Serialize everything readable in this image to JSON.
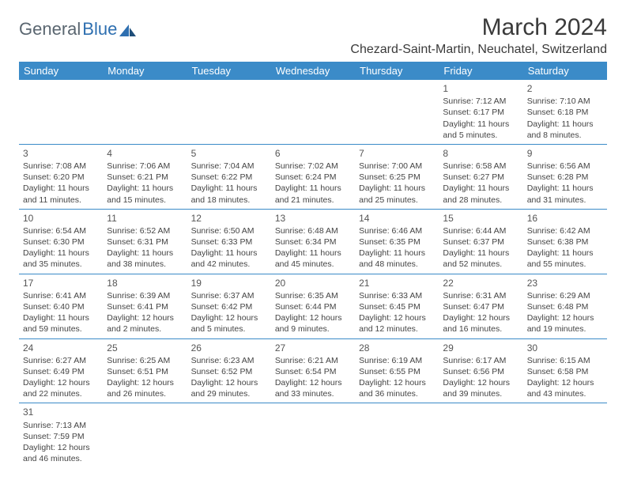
{
  "logo": {
    "general": "General",
    "blue": "Blue"
  },
  "title": "March 2024",
  "location": "Chezard-Saint-Martin, Neuchatel, Switzerland",
  "colors": {
    "header_bg": "#3b8bc8",
    "header_text": "#ffffff",
    "cell_border": "#3b8bc8",
    "text": "#444444",
    "logo_general": "#5a6670",
    "logo_blue": "#2e6fb0"
  },
  "daynames": [
    "Sunday",
    "Monday",
    "Tuesday",
    "Wednesday",
    "Thursday",
    "Friday",
    "Saturday"
  ],
  "weeks": [
    [
      null,
      null,
      null,
      null,
      null,
      {
        "n": "1",
        "sr": "Sunrise: 7:12 AM",
        "ss": "Sunset: 6:17 PM",
        "dl": "Daylight: 11 hours and 5 minutes."
      },
      {
        "n": "2",
        "sr": "Sunrise: 7:10 AM",
        "ss": "Sunset: 6:18 PM",
        "dl": "Daylight: 11 hours and 8 minutes."
      }
    ],
    [
      {
        "n": "3",
        "sr": "Sunrise: 7:08 AM",
        "ss": "Sunset: 6:20 PM",
        "dl": "Daylight: 11 hours and 11 minutes."
      },
      {
        "n": "4",
        "sr": "Sunrise: 7:06 AM",
        "ss": "Sunset: 6:21 PM",
        "dl": "Daylight: 11 hours and 15 minutes."
      },
      {
        "n": "5",
        "sr": "Sunrise: 7:04 AM",
        "ss": "Sunset: 6:22 PM",
        "dl": "Daylight: 11 hours and 18 minutes."
      },
      {
        "n": "6",
        "sr": "Sunrise: 7:02 AM",
        "ss": "Sunset: 6:24 PM",
        "dl": "Daylight: 11 hours and 21 minutes."
      },
      {
        "n": "7",
        "sr": "Sunrise: 7:00 AM",
        "ss": "Sunset: 6:25 PM",
        "dl": "Daylight: 11 hours and 25 minutes."
      },
      {
        "n": "8",
        "sr": "Sunrise: 6:58 AM",
        "ss": "Sunset: 6:27 PM",
        "dl": "Daylight: 11 hours and 28 minutes."
      },
      {
        "n": "9",
        "sr": "Sunrise: 6:56 AM",
        "ss": "Sunset: 6:28 PM",
        "dl": "Daylight: 11 hours and 31 minutes."
      }
    ],
    [
      {
        "n": "10",
        "sr": "Sunrise: 6:54 AM",
        "ss": "Sunset: 6:30 PM",
        "dl": "Daylight: 11 hours and 35 minutes."
      },
      {
        "n": "11",
        "sr": "Sunrise: 6:52 AM",
        "ss": "Sunset: 6:31 PM",
        "dl": "Daylight: 11 hours and 38 minutes."
      },
      {
        "n": "12",
        "sr": "Sunrise: 6:50 AM",
        "ss": "Sunset: 6:33 PM",
        "dl": "Daylight: 11 hours and 42 minutes."
      },
      {
        "n": "13",
        "sr": "Sunrise: 6:48 AM",
        "ss": "Sunset: 6:34 PM",
        "dl": "Daylight: 11 hours and 45 minutes."
      },
      {
        "n": "14",
        "sr": "Sunrise: 6:46 AM",
        "ss": "Sunset: 6:35 PM",
        "dl": "Daylight: 11 hours and 48 minutes."
      },
      {
        "n": "15",
        "sr": "Sunrise: 6:44 AM",
        "ss": "Sunset: 6:37 PM",
        "dl": "Daylight: 11 hours and 52 minutes."
      },
      {
        "n": "16",
        "sr": "Sunrise: 6:42 AM",
        "ss": "Sunset: 6:38 PM",
        "dl": "Daylight: 11 hours and 55 minutes."
      }
    ],
    [
      {
        "n": "17",
        "sr": "Sunrise: 6:41 AM",
        "ss": "Sunset: 6:40 PM",
        "dl": "Daylight: 11 hours and 59 minutes."
      },
      {
        "n": "18",
        "sr": "Sunrise: 6:39 AM",
        "ss": "Sunset: 6:41 PM",
        "dl": "Daylight: 12 hours and 2 minutes."
      },
      {
        "n": "19",
        "sr": "Sunrise: 6:37 AM",
        "ss": "Sunset: 6:42 PM",
        "dl": "Daylight: 12 hours and 5 minutes."
      },
      {
        "n": "20",
        "sr": "Sunrise: 6:35 AM",
        "ss": "Sunset: 6:44 PM",
        "dl": "Daylight: 12 hours and 9 minutes."
      },
      {
        "n": "21",
        "sr": "Sunrise: 6:33 AM",
        "ss": "Sunset: 6:45 PM",
        "dl": "Daylight: 12 hours and 12 minutes."
      },
      {
        "n": "22",
        "sr": "Sunrise: 6:31 AM",
        "ss": "Sunset: 6:47 PM",
        "dl": "Daylight: 12 hours and 16 minutes."
      },
      {
        "n": "23",
        "sr": "Sunrise: 6:29 AM",
        "ss": "Sunset: 6:48 PM",
        "dl": "Daylight: 12 hours and 19 minutes."
      }
    ],
    [
      {
        "n": "24",
        "sr": "Sunrise: 6:27 AM",
        "ss": "Sunset: 6:49 PM",
        "dl": "Daylight: 12 hours and 22 minutes."
      },
      {
        "n": "25",
        "sr": "Sunrise: 6:25 AM",
        "ss": "Sunset: 6:51 PM",
        "dl": "Daylight: 12 hours and 26 minutes."
      },
      {
        "n": "26",
        "sr": "Sunrise: 6:23 AM",
        "ss": "Sunset: 6:52 PM",
        "dl": "Daylight: 12 hours and 29 minutes."
      },
      {
        "n": "27",
        "sr": "Sunrise: 6:21 AM",
        "ss": "Sunset: 6:54 PM",
        "dl": "Daylight: 12 hours and 33 minutes."
      },
      {
        "n": "28",
        "sr": "Sunrise: 6:19 AM",
        "ss": "Sunset: 6:55 PM",
        "dl": "Daylight: 12 hours and 36 minutes."
      },
      {
        "n": "29",
        "sr": "Sunrise: 6:17 AM",
        "ss": "Sunset: 6:56 PM",
        "dl": "Daylight: 12 hours and 39 minutes."
      },
      {
        "n": "30",
        "sr": "Sunrise: 6:15 AM",
        "ss": "Sunset: 6:58 PM",
        "dl": "Daylight: 12 hours and 43 minutes."
      }
    ],
    [
      {
        "n": "31",
        "sr": "Sunrise: 7:13 AM",
        "ss": "Sunset: 7:59 PM",
        "dl": "Daylight: 12 hours and 46 minutes."
      },
      null,
      null,
      null,
      null,
      null,
      null
    ]
  ]
}
